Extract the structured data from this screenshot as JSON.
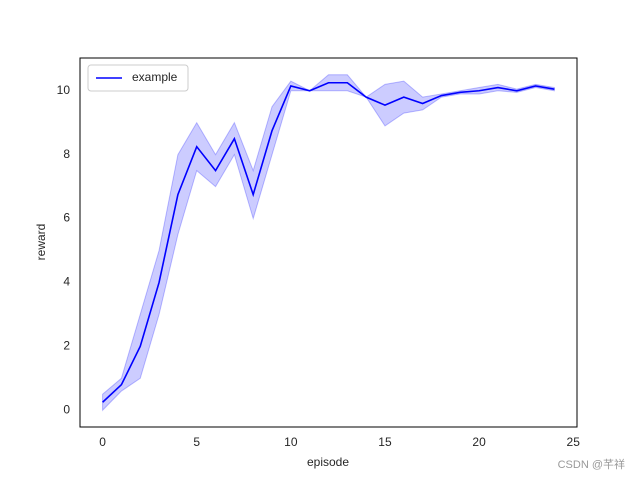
{
  "chart_data": {
    "type": "line",
    "x": [
      0,
      1,
      2,
      3,
      4,
      5,
      6,
      7,
      8,
      9,
      10,
      11,
      12,
      13,
      14,
      15,
      16,
      17,
      18,
      19,
      20,
      21,
      22,
      23,
      24
    ],
    "series": [
      {
        "name": "example",
        "color": "#0000ff",
        "values": [
          0.25,
          0.8,
          2.0,
          4.0,
          6.75,
          8.25,
          7.5,
          8.5,
          6.75,
          8.75,
          10.15,
          10.0,
          10.25,
          10.25,
          9.8,
          9.55,
          9.8,
          9.6,
          9.85,
          9.95,
          10.0,
          10.1,
          10.0,
          10.15,
          10.05
        ],
        "lower": [
          0,
          0.6,
          1.0,
          3.0,
          5.5,
          7.5,
          7.0,
          8.0,
          6.0,
          8.0,
          10.0,
          10.0,
          10.0,
          10.0,
          9.8,
          8.9,
          9.3,
          9.4,
          9.8,
          9.9,
          9.9,
          10.0,
          9.95,
          10.1,
          10.0
        ],
        "upper": [
          0.5,
          1.0,
          3.0,
          5.0,
          8.0,
          9.0,
          8.0,
          9.0,
          7.5,
          9.5,
          10.3,
          10.0,
          10.5,
          10.5,
          9.8,
          10.2,
          10.3,
          9.8,
          9.9,
          10.0,
          10.1,
          10.2,
          10.05,
          10.2,
          10.1
        ]
      }
    ],
    "xlabel": "episode",
    "ylabel": "reward",
    "xlim": [
      -1.2,
      25.2
    ],
    "ylim": [
      -0.525,
      11.025
    ],
    "xticks": [
      0,
      5,
      10,
      15,
      20,
      25
    ],
    "yticks": [
      0,
      2,
      4,
      6,
      8,
      10
    ],
    "grid": false,
    "legend": "upper left",
    "watermark": "CSDN @芊祥"
  }
}
